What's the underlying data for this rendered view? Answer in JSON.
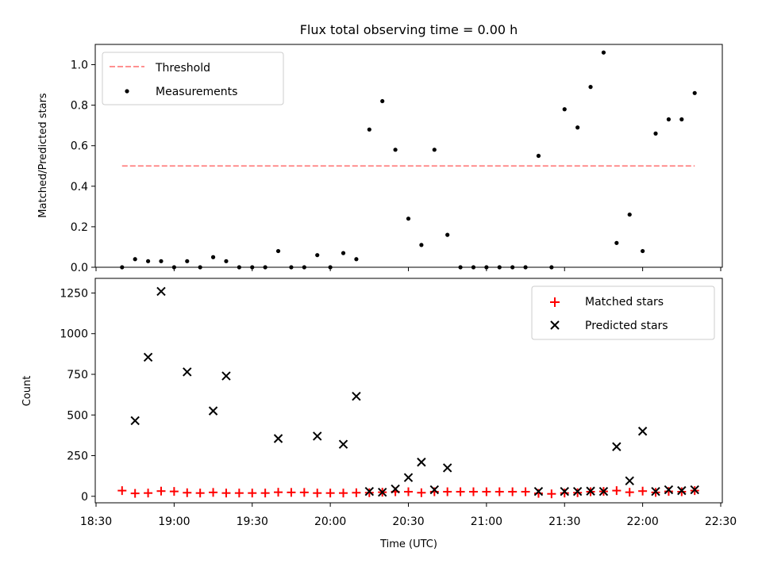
{
  "chart_data": [
    {
      "type": "scatter",
      "title": "Flux total observing time = 0.00 h",
      "xlabel": "",
      "ylabel": "Matched/Predicted stars",
      "ylim": [
        0,
        1.1
      ],
      "yticks": [
        "0.0",
        "0.2",
        "0.4",
        "0.6",
        "0.8",
        "1.0"
      ],
      "legend_position": "upper-left",
      "threshold": {
        "name": "Threshold",
        "value": 0.5,
        "x_start": "18:40",
        "x_end": "22:20",
        "color": "#ff8080"
      },
      "series": [
        {
          "name": "Measurements",
          "color": "#000000",
          "points": [
            [
              "18:40",
              0.0
            ],
            [
              "18:45",
              0.04
            ],
            [
              "18:50",
              0.03
            ],
            [
              "18:55",
              0.03
            ],
            [
              "19:00",
              0.0
            ],
            [
              "19:05",
              0.03
            ],
            [
              "19:10",
              0.0
            ],
            [
              "19:15",
              0.05
            ],
            [
              "19:20",
              0.03
            ],
            [
              "19:25",
              0.0
            ],
            [
              "19:30",
              0.0
            ],
            [
              "19:35",
              0.0
            ],
            [
              "19:40",
              0.08
            ],
            [
              "19:45",
              0.0
            ],
            [
              "19:50",
              0.0
            ],
            [
              "19:55",
              0.06
            ],
            [
              "20:00",
              0.0
            ],
            [
              "20:05",
              0.07
            ],
            [
              "20:10",
              0.04
            ],
            [
              "20:15",
              0.68
            ],
            [
              "20:20",
              0.82
            ],
            [
              "20:25",
              0.58
            ],
            [
              "20:30",
              0.24
            ],
            [
              "20:35",
              0.11
            ],
            [
              "20:40",
              0.58
            ],
            [
              "20:45",
              0.16
            ],
            [
              "20:50",
              0.0
            ],
            [
              "20:55",
              0.0
            ],
            [
              "21:00",
              0.0
            ],
            [
              "21:05",
              0.0
            ],
            [
              "21:10",
              0.0
            ],
            [
              "21:15",
              0.0
            ],
            [
              "21:20",
              0.55
            ],
            [
              "21:25",
              0.0
            ],
            [
              "21:30",
              0.78
            ],
            [
              "21:35",
              0.69
            ],
            [
              "21:40",
              0.89
            ],
            [
              "21:45",
              1.06
            ],
            [
              "21:50",
              0.12
            ],
            [
              "21:55",
              0.26
            ],
            [
              "22:00",
              0.08
            ],
            [
              "22:05",
              0.66
            ],
            [
              "22:10",
              0.73
            ],
            [
              "22:15",
              0.73
            ],
            [
              "22:20",
              0.86
            ]
          ]
        }
      ]
    },
    {
      "type": "scatter",
      "title": "",
      "xlabel": "Time (UTC)",
      "ylabel": "Count",
      "ylim": [
        -40,
        1340
      ],
      "yticks": [
        "0",
        "250",
        "500",
        "750",
        "1000",
        "1250"
      ],
      "xticks": [
        "18:30",
        "19:00",
        "19:30",
        "20:00",
        "20:30",
        "21:00",
        "21:30",
        "22:00",
        "22:30"
      ],
      "legend_position": "upper-right",
      "series": [
        {
          "name": "Matched stars",
          "marker": "+",
          "color": "#ff0000",
          "points": [
            [
              "18:40",
              35
            ],
            [
              "18:45",
              18
            ],
            [
              "18:50",
              20
            ],
            [
              "18:55",
              32
            ],
            [
              "19:00",
              30
            ],
            [
              "19:05",
              22
            ],
            [
              "19:10",
              20
            ],
            [
              "19:15",
              24
            ],
            [
              "19:20",
              20
            ],
            [
              "19:25",
              20
            ],
            [
              "19:30",
              20
            ],
            [
              "19:35",
              20
            ],
            [
              "19:40",
              25
            ],
            [
              "19:45",
              24
            ],
            [
              "19:50",
              24
            ],
            [
              "19:55",
              20
            ],
            [
              "20:00",
              20
            ],
            [
              "20:05",
              20
            ],
            [
              "20:10",
              22
            ],
            [
              "20:15",
              22
            ],
            [
              "20:20",
              25
            ],
            [
              "20:25",
              28
            ],
            [
              "20:30",
              28
            ],
            [
              "20:35",
              22
            ],
            [
              "20:40",
              28
            ],
            [
              "20:45",
              28
            ],
            [
              "20:50",
              28
            ],
            [
              "20:55",
              28
            ],
            [
              "21:00",
              28
            ],
            [
              "21:05",
              28
            ],
            [
              "21:10",
              28
            ],
            [
              "21:15",
              28
            ],
            [
              "21:20",
              18
            ],
            [
              "21:25",
              15
            ],
            [
              "21:30",
              20
            ],
            [
              "21:35",
              22
            ],
            [
              "21:40",
              28
            ],
            [
              "21:45",
              30
            ],
            [
              "21:50",
              35
            ],
            [
              "21:55",
              25
            ],
            [
              "22:00",
              32
            ],
            [
              "22:05",
              24
            ],
            [
              "22:10",
              30
            ],
            [
              "22:15",
              28
            ],
            [
              "22:20",
              35
            ]
          ]
        },
        {
          "name": "Predicted stars",
          "marker": "x",
          "color": "#000000",
          "points": [
            [
              "18:45",
              465
            ],
            [
              "18:50",
              855
            ],
            [
              "18:55",
              1260
            ],
            [
              "19:05",
              765
            ],
            [
              "19:15",
              525
            ],
            [
              "19:20",
              740
            ],
            [
              "19:40",
              355
            ],
            [
              "19:55",
              370
            ],
            [
              "20:05",
              320
            ],
            [
              "20:10",
              615
            ],
            [
              "20:15",
              30
            ],
            [
              "20:20",
              25
            ],
            [
              "20:25",
              45
            ],
            [
              "20:30",
              115
            ],
            [
              "20:35",
              210
            ],
            [
              "20:40",
              40
            ],
            [
              "20:45",
              175
            ],
            [
              "21:20",
              30
            ],
            [
              "21:30",
              30
            ],
            [
              "21:35",
              30
            ],
            [
              "21:40",
              32
            ],
            [
              "21:45",
              30
            ],
            [
              "21:50",
              305
            ],
            [
              "21:55",
              95
            ],
            [
              "22:00",
              400
            ],
            [
              "22:05",
              30
            ],
            [
              "22:10",
              40
            ],
            [
              "22:15",
              35
            ],
            [
              "22:20",
              40
            ]
          ]
        }
      ]
    }
  ]
}
